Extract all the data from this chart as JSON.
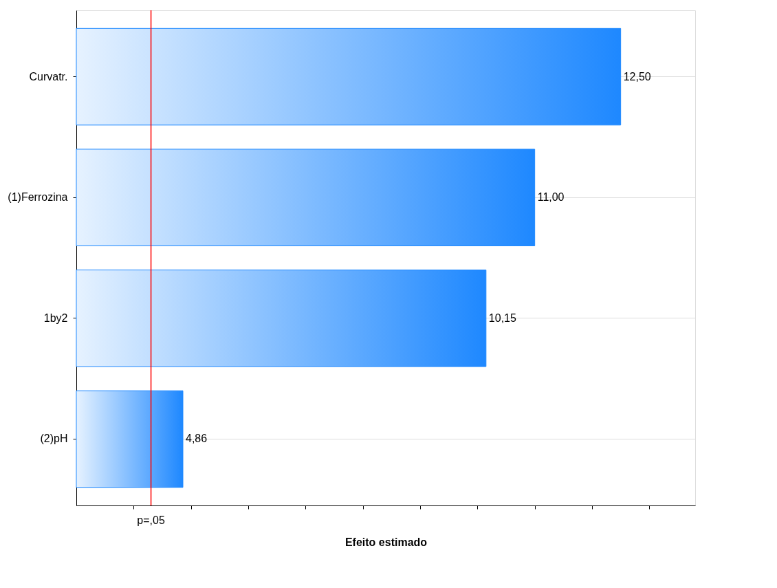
{
  "chart_data": {
    "type": "bar",
    "orientation": "horizontal",
    "xlabel": "Efeito estimado",
    "categories": [
      "Curvatr.",
      "(1)Ferrozina",
      "1by2",
      "(2)pH"
    ],
    "values": [
      12.5,
      11.0,
      10.15,
      4.86
    ],
    "value_labels": [
      "12,50",
      "11,00",
      "10,15",
      "4,86"
    ],
    "color": "#1e88ff",
    "xlim": [
      3.0,
      13.8
    ],
    "xticks": [
      {
        "value": 4,
        "label": null
      },
      {
        "value": 5,
        "label": null
      },
      {
        "value": 6,
        "label": null
      },
      {
        "value": 7,
        "label": null
      },
      {
        "value": 8,
        "label": null
      },
      {
        "value": 9,
        "label": null
      },
      {
        "value": 10,
        "label": null
      },
      {
        "value": 11,
        "label": null
      },
      {
        "value": 12,
        "label": null
      },
      {
        "value": 13,
        "label": null
      }
    ],
    "tick_labels": "y",
    "ref_lines": [
      {
        "axis": "x",
        "value": 4.303,
        "label": "p=,05",
        "color": "#ff0000"
      }
    ],
    "grid": "y"
  }
}
